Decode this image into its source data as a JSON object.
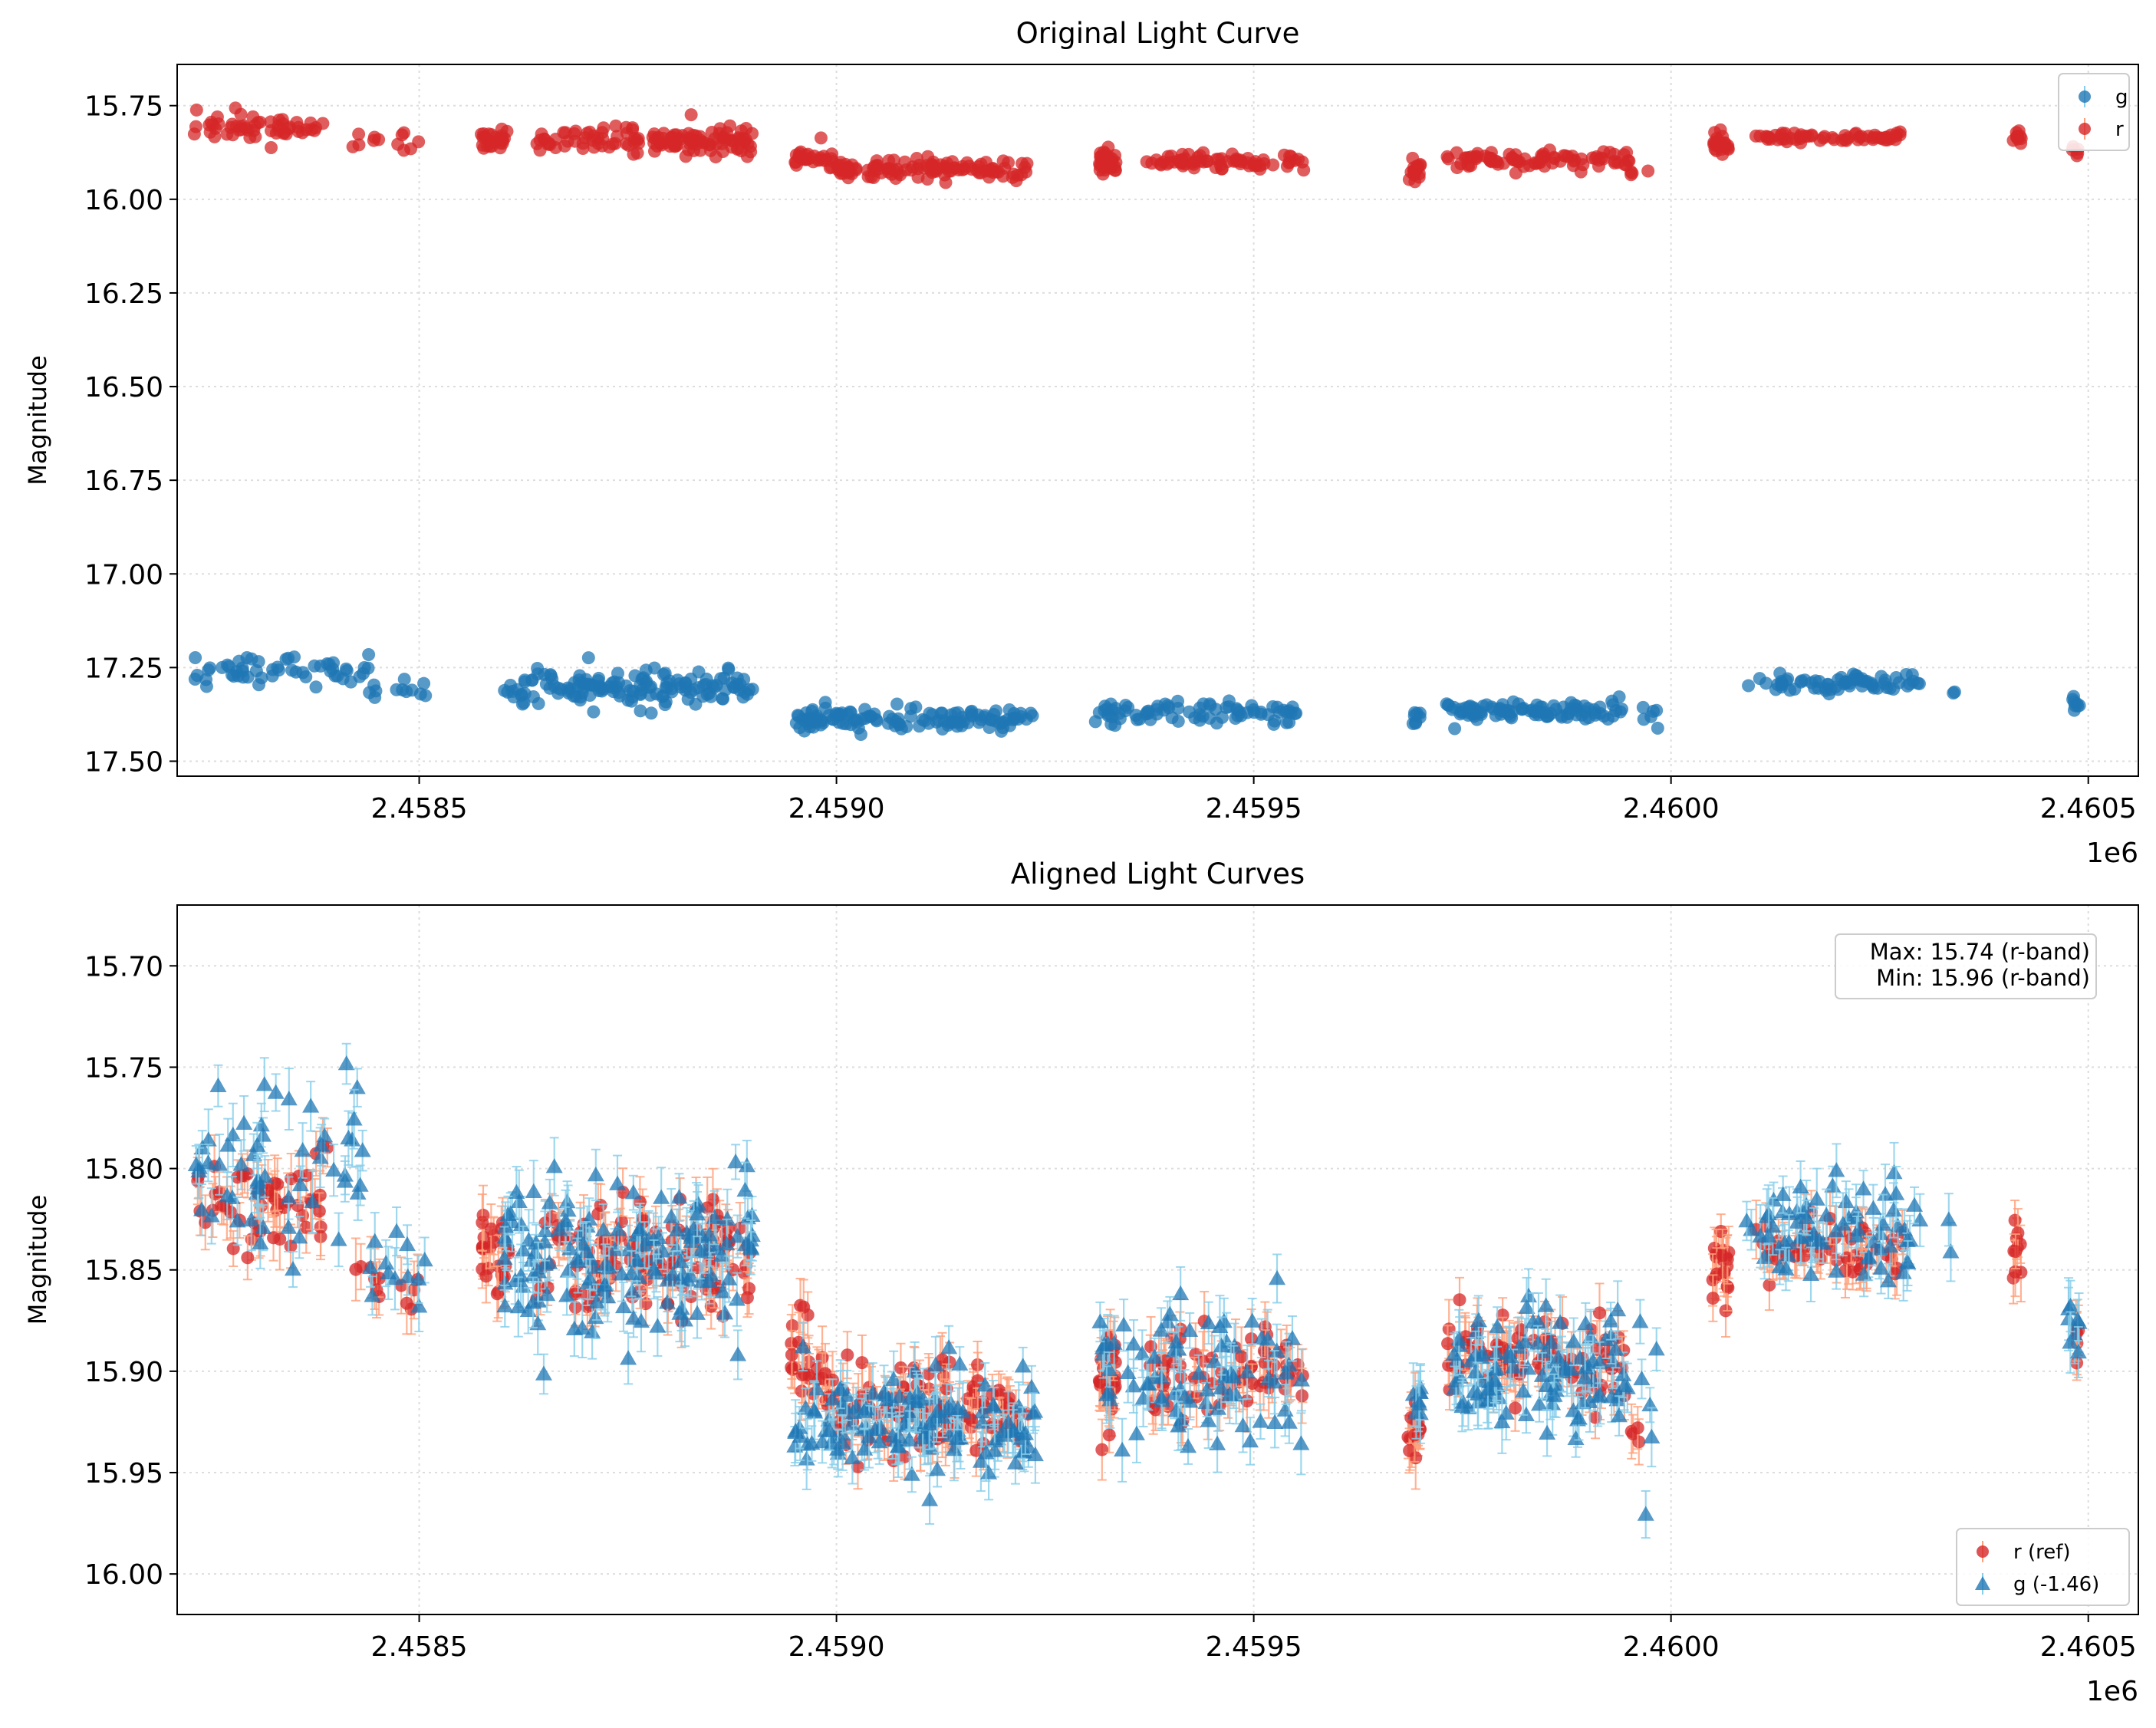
{
  "colors": {
    "g_marker": "#1f77b4",
    "r_marker": "#d62728",
    "g_errorbar": "#87ceeb",
    "r_errorbar": "#ffa07a",
    "grid": "#dddddd",
    "axes": "#000000"
  },
  "chart_data": [
    {
      "type": "scatter",
      "title": "Original Light Curve",
      "xlabel": "",
      "ylabel": "Magnitude",
      "x_offset_label": "1e6",
      "xlim": [
        2458210,
        2460560
      ],
      "ylim": [
        17.54,
        15.64
      ],
      "y_inverted": true,
      "grid": true,
      "x_ticks": [
        2458500,
        2459000,
        2459500,
        2460000,
        2460500
      ],
      "x_tick_labels": [
        "2.4585",
        "2.4590",
        "2.4595",
        "2.4600",
        "2.4605"
      ],
      "y_ticks": [
        15.75,
        16.0,
        16.25,
        16.5,
        16.75,
        17.0,
        17.25,
        17.5
      ],
      "y_tick_labels": [
        "15.75",
        "16.00",
        "16.25",
        "16.50",
        "16.75",
        "17.00",
        "17.25",
        "17.50"
      ],
      "legend": {
        "placement": "upper right",
        "entries": [
          {
            "label": "g",
            "marker": "circle",
            "color": "#1f77b4"
          },
          {
            "label": "r",
            "marker": "circle",
            "color": "#d62728"
          }
        ]
      },
      "series": [
        {
          "name": "r",
          "marker": "circle",
          "color": "#d62728",
          "segments": [
            {
              "x_start": 2458230,
              "x_end": 2458390,
              "mean_mag": 15.81,
              "spread": 0.025,
              "count": 55
            },
            {
              "x_start": 2458420,
              "x_end": 2458500,
              "mean_mag": 15.845,
              "spread": 0.02,
              "count": 12
            },
            {
              "x_start": 2458570,
              "x_end": 2458610,
              "mean_mag": 15.84,
              "spread": 0.02,
              "count": 25
            },
            {
              "x_start": 2458640,
              "x_end": 2458900,
              "mean_mag": 15.845,
              "spread": 0.025,
              "count": 130
            },
            {
              "x_start": 2458945,
              "x_end": 2459000,
              "mean_mag": 15.895,
              "spread": 0.02,
              "count": 30
            },
            {
              "x_start": 2459000,
              "x_end": 2459230,
              "mean_mag": 15.92,
              "spread": 0.018,
              "count": 110
            },
            {
              "x_start": 2459315,
              "x_end": 2459335,
              "mean_mag": 15.905,
              "spread": 0.025,
              "count": 30
            },
            {
              "x_start": 2459370,
              "x_end": 2459560,
              "mean_mag": 15.9,
              "spread": 0.015,
              "count": 70
            },
            {
              "x_start": 2459685,
              "x_end": 2459700,
              "mean_mag": 15.92,
              "spread": 0.02,
              "count": 18
            },
            {
              "x_start": 2459730,
              "x_end": 2459950,
              "mean_mag": 15.895,
              "spread": 0.018,
              "count": 85
            },
            {
              "x_start": 2459950,
              "x_end": 2459980,
              "mean_mag": 15.93,
              "spread": 0.005,
              "count": 4
            },
            {
              "x_start": 2460050,
              "x_end": 2460070,
              "mean_mag": 15.85,
              "spread": 0.02,
              "count": 22
            },
            {
              "x_start": 2460100,
              "x_end": 2460280,
              "mean_mag": 15.835,
              "spread": 0.01,
              "count": 60
            },
            {
              "x_start": 2460410,
              "x_end": 2460420,
              "mean_mag": 15.835,
              "spread": 0.015,
              "count": 10
            },
            {
              "x_start": 2460480,
              "x_end": 2460490,
              "mean_mag": 15.875,
              "spread": 0.015,
              "count": 5
            }
          ]
        },
        {
          "name": "g",
          "marker": "circle",
          "color": "#1f77b4",
          "segments": [
            {
              "x_start": 2458230,
              "x_end": 2458440,
              "mean_mag": 17.26,
              "spread": 0.03,
              "count": 55
            },
            {
              "x_start": 2458440,
              "x_end": 2458510,
              "mean_mag": 17.315,
              "spread": 0.02,
              "count": 12
            },
            {
              "x_start": 2458600,
              "x_end": 2458900,
              "mean_mag": 17.305,
              "spread": 0.03,
              "count": 150
            },
            {
              "x_start": 2458945,
              "x_end": 2459240,
              "mean_mag": 17.385,
              "spread": 0.02,
              "count": 130
            },
            {
              "x_start": 2459310,
              "x_end": 2459560,
              "mean_mag": 17.37,
              "spread": 0.02,
              "count": 80
            },
            {
              "x_start": 2459690,
              "x_end": 2459700,
              "mean_mag": 17.38,
              "spread": 0.015,
              "count": 8
            },
            {
              "x_start": 2459730,
              "x_end": 2459950,
              "mean_mag": 17.365,
              "spread": 0.02,
              "count": 100
            },
            {
              "x_start": 2459960,
              "x_end": 2459985,
              "mean_mag": 17.39,
              "spread": 0.03,
              "count": 6
            },
            {
              "x_start": 2460090,
              "x_end": 2460300,
              "mean_mag": 17.29,
              "spread": 0.02,
              "count": 70
            },
            {
              "x_start": 2460330,
              "x_end": 2460340,
              "mean_mag": 17.32,
              "spread": 0.005,
              "count": 2
            },
            {
              "x_start": 2460475,
              "x_end": 2460490,
              "mean_mag": 17.34,
              "spread": 0.015,
              "count": 8
            }
          ]
        }
      ]
    },
    {
      "type": "scatter",
      "title": "Aligned Light Curves",
      "xlabel": "",
      "ylabel": "Magnitude",
      "x_offset_label": "1e6",
      "xlim": [
        2458210,
        2460560
      ],
      "ylim": [
        16.02,
        15.67
      ],
      "y_inverted": true,
      "grid": true,
      "x_ticks": [
        2458500,
        2459000,
        2459500,
        2460000,
        2460500
      ],
      "x_tick_labels": [
        "2.4585",
        "2.4590",
        "2.4595",
        "2.4600",
        "2.4605"
      ],
      "y_ticks": [
        15.7,
        15.75,
        15.8,
        15.85,
        15.9,
        15.95,
        16.0
      ],
      "y_tick_labels": [
        "15.70",
        "15.75",
        "15.80",
        "15.85",
        "15.90",
        "15.95",
        "16.00"
      ],
      "legend": {
        "placement": "lower right",
        "entries": [
          {
            "label": "r (ref)",
            "marker": "circle",
            "color": "#d62728"
          },
          {
            "label": "g (-1.46)",
            "marker": "triangle",
            "color": "#1f77b4"
          }
        ]
      },
      "annotation": {
        "placement": "upper right",
        "lines": [
          "Max: 15.74 (r-band)",
          "Min: 15.96 (r-band)"
        ]
      },
      "g_shift": -1.46,
      "error_bar_mag": 0.012,
      "series": [
        {
          "name": "r (ref)",
          "marker": "circle",
          "color": "#d62728",
          "error_color": "#ffa07a",
          "segments": [
            {
              "x_start": 2458230,
              "x_end": 2458390,
              "mean_mag": 15.815,
              "spread": 0.02,
              "count": 55
            },
            {
              "x_start": 2458420,
              "x_end": 2458500,
              "mean_mag": 15.855,
              "spread": 0.015,
              "count": 12
            },
            {
              "x_start": 2458570,
              "x_end": 2458610,
              "mean_mag": 15.84,
              "spread": 0.015,
              "count": 25
            },
            {
              "x_start": 2458640,
              "x_end": 2458900,
              "mean_mag": 15.845,
              "spread": 0.02,
              "count": 130
            },
            {
              "x_start": 2458945,
              "x_end": 2459000,
              "mean_mag": 15.9,
              "spread": 0.02,
              "count": 30
            },
            {
              "x_start": 2459000,
              "x_end": 2459230,
              "mean_mag": 15.92,
              "spread": 0.015,
              "count": 110
            },
            {
              "x_start": 2459315,
              "x_end": 2459335,
              "mean_mag": 15.905,
              "spread": 0.02,
              "count": 30
            },
            {
              "x_start": 2459370,
              "x_end": 2459560,
              "mean_mag": 15.9,
              "spread": 0.015,
              "count": 70
            },
            {
              "x_start": 2459685,
              "x_end": 2459700,
              "mean_mag": 15.93,
              "spread": 0.012,
              "count": 18
            },
            {
              "x_start": 2459730,
              "x_end": 2459950,
              "mean_mag": 15.895,
              "spread": 0.015,
              "count": 85
            },
            {
              "x_start": 2459950,
              "x_end": 2459980,
              "mean_mag": 15.93,
              "spread": 0.005,
              "count": 4
            },
            {
              "x_start": 2460050,
              "x_end": 2460070,
              "mean_mag": 15.845,
              "spread": 0.015,
              "count": 22
            },
            {
              "x_start": 2460100,
              "x_end": 2460280,
              "mean_mag": 15.84,
              "spread": 0.01,
              "count": 60
            },
            {
              "x_start": 2460410,
              "x_end": 2460420,
              "mean_mag": 15.835,
              "spread": 0.015,
              "count": 10
            },
            {
              "x_start": 2460480,
              "x_end": 2460490,
              "mean_mag": 15.885,
              "spread": 0.012,
              "count": 5
            }
          ]
        },
        {
          "name": "g (-1.46)",
          "marker": "triangle",
          "color": "#1f77b4",
          "error_color": "#87ceeb",
          "segments": [
            {
              "x_start": 2458230,
              "x_end": 2458440,
              "mean_mag": 15.8,
              "spread": 0.03,
              "count": 55
            },
            {
              "x_start": 2458440,
              "x_end": 2458510,
              "mean_mag": 15.855,
              "spread": 0.02,
              "count": 12
            },
            {
              "x_start": 2458600,
              "x_end": 2458900,
              "mean_mag": 15.845,
              "spread": 0.028,
              "count": 150
            },
            {
              "x_start": 2458945,
              "x_end": 2459240,
              "mean_mag": 15.925,
              "spread": 0.02,
              "count": 130
            },
            {
              "x_start": 2459310,
              "x_end": 2459560,
              "mean_mag": 15.905,
              "spread": 0.025,
              "count": 80
            },
            {
              "x_start": 2459690,
              "x_end": 2459700,
              "mean_mag": 15.915,
              "spread": 0.015,
              "count": 8
            },
            {
              "x_start": 2459730,
              "x_end": 2459950,
              "mean_mag": 15.9,
              "spread": 0.02,
              "count": 100
            },
            {
              "x_start": 2459960,
              "x_end": 2459985,
              "mean_mag": 15.93,
              "spread": 0.03,
              "count": 6
            },
            {
              "x_start": 2460090,
              "x_end": 2460300,
              "mean_mag": 15.83,
              "spread": 0.02,
              "count": 70
            },
            {
              "x_start": 2460330,
              "x_end": 2460340,
              "mean_mag": 15.835,
              "spread": 0.02,
              "count": 2
            },
            {
              "x_start": 2460475,
              "x_end": 2460490,
              "mean_mag": 15.875,
              "spread": 0.015,
              "count": 8
            }
          ]
        }
      ]
    }
  ]
}
